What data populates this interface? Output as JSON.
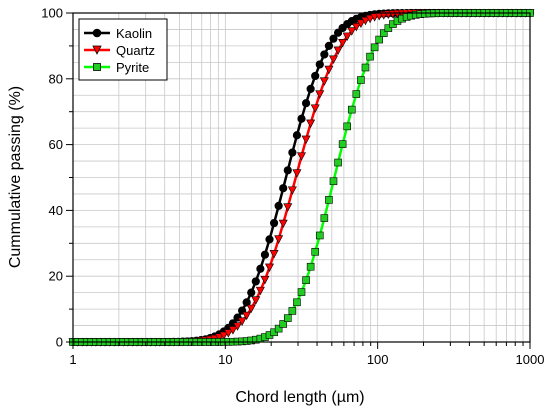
{
  "chart_data": {
    "type": "line",
    "xlabel": "Chord length (µm)",
    "ylabel": "Cummulative passing (%)",
    "x_scale": "log",
    "xlim": [
      1,
      1000
    ],
    "ylim": [
      0,
      100
    ],
    "x_ticks": [
      1,
      10,
      100,
      1000
    ],
    "x_tick_labels": [
      "1",
      "10",
      "100",
      "1000"
    ],
    "y_ticks": [
      0,
      20,
      40,
      60,
      80,
      100
    ],
    "y_tick_labels": [
      "0",
      "20",
      "40",
      "60",
      "80",
      "100"
    ],
    "grid": true,
    "legend_position": "top-left",
    "series": [
      {
        "name": "Kaolin",
        "color": "#000000",
        "marker": "circle",
        "marker_fill": "#000000",
        "median": 25,
        "spread": 0.22,
        "values_summary": "S-shaped cumulative curve rising from 0 near 2 µm to 100 near 150 µm"
      },
      {
        "name": "Quartz",
        "color": "#ff0000",
        "marker": "triangle-down",
        "marker_fill": "#ff0000",
        "median": 29,
        "spread": 0.23,
        "values_summary": "S-shaped cumulative curve rising from 0 near 2 µm to 100 near 170 µm"
      },
      {
        "name": "Pyrite",
        "color": "#00ff00",
        "marker": "square",
        "marker_fill": "#22cc22",
        "median": 52,
        "spread": 0.21,
        "values_summary": "S-shaped cumulative curve rising from 0 near 5 µm to 100 near 250 µm"
      }
    ]
  }
}
